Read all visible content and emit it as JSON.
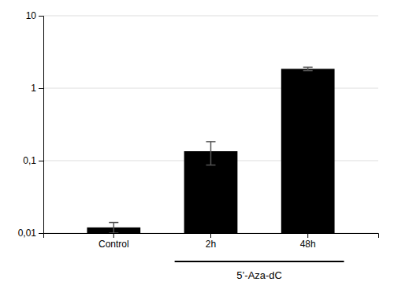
{
  "chart_data": {
    "type": "bar",
    "categories": [
      "Control",
      "2h",
      "48h"
    ],
    "values": [
      0.012,
      0.135,
      1.85
    ],
    "errors": [
      0.002,
      0.048,
      0.1
    ],
    "color": "#000000",
    "log": "y",
    "ylim": [
      0.01,
      10
    ],
    "yticks": [
      {
        "value": 0.01,
        "label": "0,01"
      },
      {
        "value": 0.1,
        "label": "0,1"
      },
      1,
      10
    ],
    "grid": true,
    "annotations": [
      {
        "text": "5’-Aza-dC",
        "span": [
          "2h",
          "48h"
        ]
      }
    ]
  }
}
